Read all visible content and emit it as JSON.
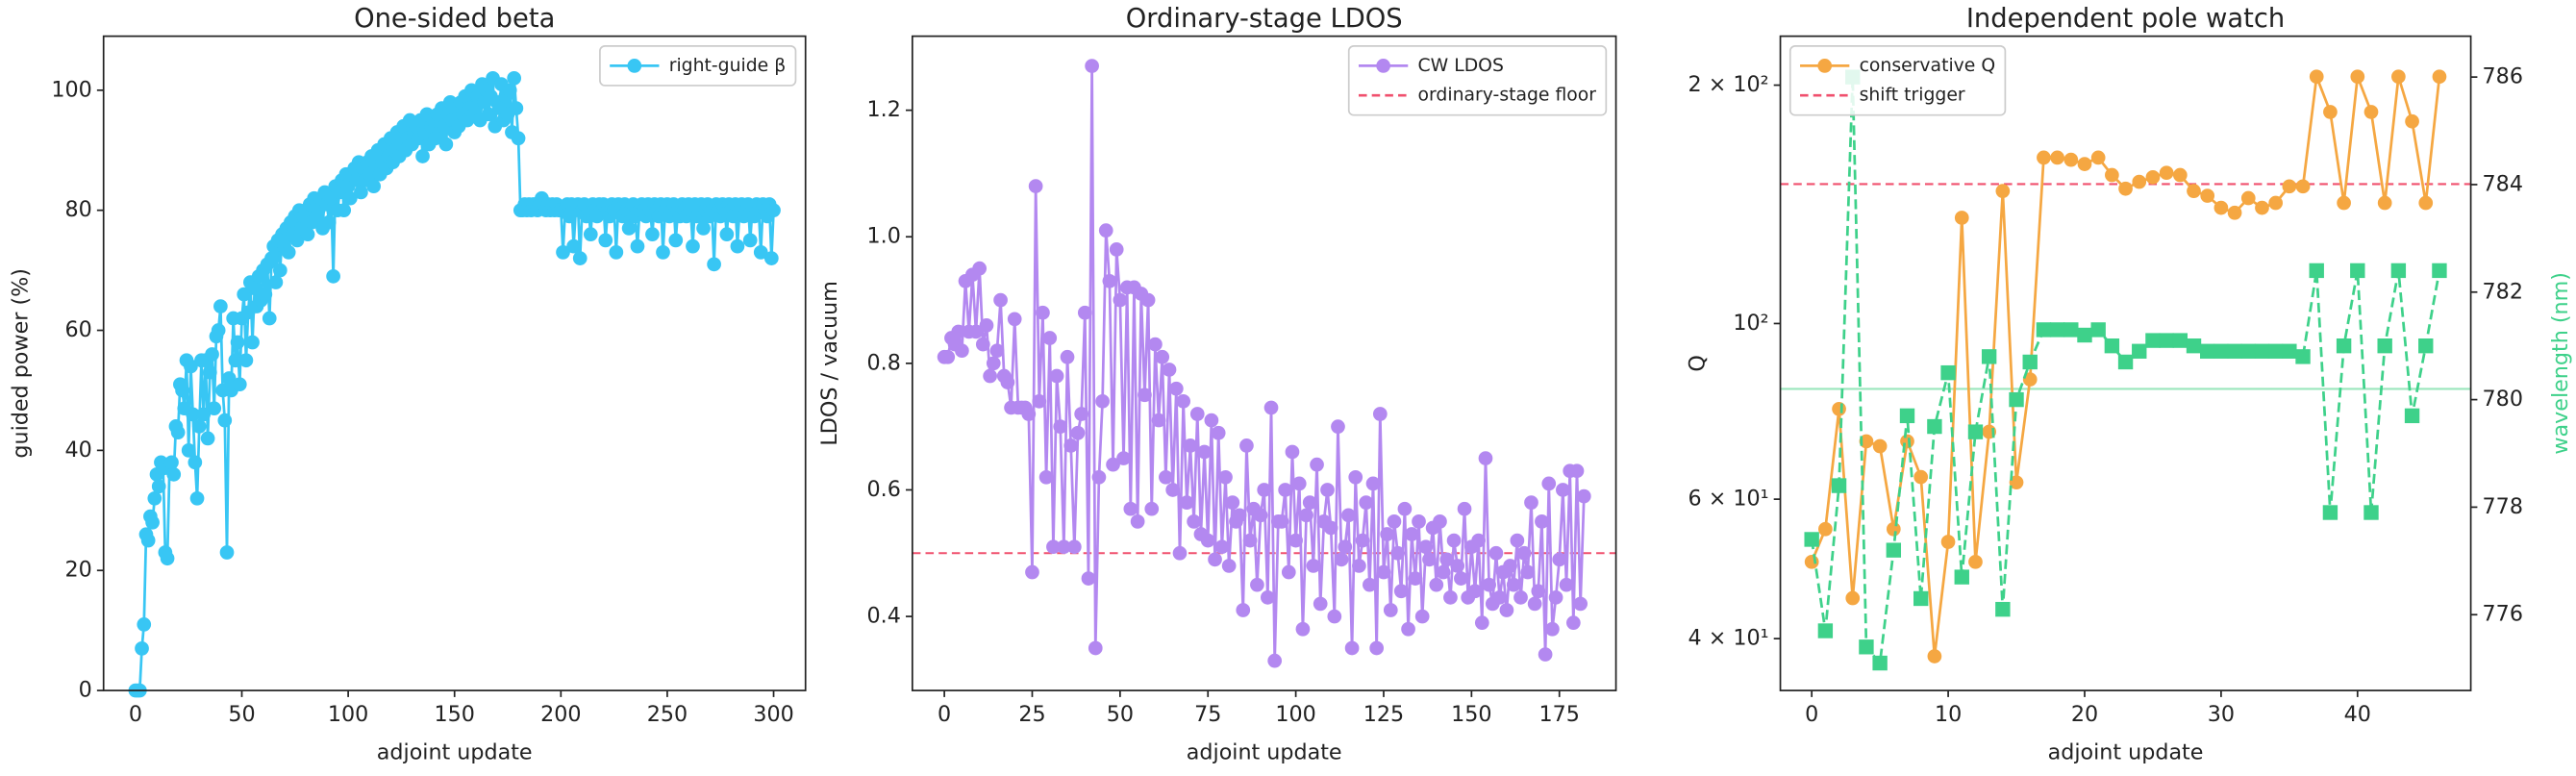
{
  "chart_data": [
    {
      "type": "line",
      "title": "One-sided beta",
      "xlabel": "adjoint update",
      "ylabel": "guided power (%)",
      "xlim": [
        -15,
        315
      ],
      "ylim": [
        0,
        109
      ],
      "xticks": [
        0,
        50,
        100,
        150,
        200,
        250,
        300
      ],
      "yticks": [
        0,
        20,
        40,
        60,
        80,
        100
      ],
      "legend": "upper right",
      "grid": false,
      "series": [
        {
          "name": "right-guide β",
          "color": "#38c6f4",
          "marker": "o",
          "linestyle": "solid",
          "values": [
            0,
            0,
            0,
            7,
            11,
            26,
            25,
            29,
            28,
            32,
            36,
            34,
            38,
            37,
            23,
            22,
            37,
            38,
            36,
            44,
            43,
            51,
            50,
            47,
            55,
            40,
            54,
            46,
            38,
            32,
            44,
            55,
            46,
            55,
            42,
            53,
            56,
            47,
            59,
            60,
            64,
            50,
            45,
            23,
            52,
            50,
            62,
            55,
            58,
            51,
            62,
            66,
            55,
            63,
            68,
            58,
            67,
            64,
            69,
            65,
            70,
            66,
            71,
            62,
            72,
            74,
            68,
            75,
            70,
            76,
            74,
            77,
            73,
            78,
            76,
            79,
            75,
            80,
            77,
            79,
            80,
            76,
            81,
            78,
            82,
            79,
            80,
            82,
            77,
            83,
            81,
            78,
            82,
            69,
            84,
            80,
            83,
            85,
            80,
            86,
            84,
            82,
            86,
            87,
            85,
            88,
            83,
            87,
            85,
            88,
            86,
            89,
            84,
            87,
            90,
            86,
            88,
            91,
            87,
            89,
            92,
            88,
            90,
            93,
            89,
            91,
            94,
            90,
            92,
            95,
            91,
            93,
            94,
            92,
            95,
            89,
            93,
            96,
            91,
            94,
            95,
            92,
            96,
            93,
            97,
            94,
            91,
            96,
            98,
            95,
            93,
            97,
            94,
            98,
            96,
            99,
            95,
            97,
            100,
            96,
            97,
            99,
            95,
            101,
            98,
            100,
            96,
            99,
            102,
            94,
            98,
            97,
            101,
            95,
            99,
            96,
            100,
            93,
            102,
            97,
            92,
            80,
            80,
            81,
            80,
            81,
            80,
            81,
            81,
            80,
            81,
            82,
            81,
            80,
            81,
            80,
            81,
            80,
            81,
            80,
            80,
            73,
            80,
            81,
            79,
            81,
            74,
            80,
            81,
            72,
            80,
            81,
            79,
            80,
            76,
            81,
            80,
            79,
            81,
            80,
            81,
            75,
            80,
            79,
            81,
            80,
            73,
            81,
            80,
            79,
            81,
            80,
            77,
            80,
            81,
            79,
            74,
            80,
            81,
            80,
            79,
            81,
            80,
            76,
            81,
            80,
            79,
            81,
            73,
            80,
            81,
            79,
            80,
            81,
            75,
            80,
            79,
            81,
            80,
            79,
            81,
            80,
            74,
            81,
            79,
            80,
            81,
            77,
            80,
            81,
            79,
            80,
            71,
            81,
            80,
            79,
            81,
            80,
            76,
            81,
            80,
            79,
            81,
            74,
            80,
            81,
            79,
            80,
            81,
            75,
            80,
            79,
            81,
            80,
            73,
            81,
            80,
            79,
            81,
            72,
            80
          ]
        }
      ],
      "reference_lines": []
    },
    {
      "type": "line",
      "title": "Ordinary-stage LDOS",
      "xlabel": "adjoint update",
      "ylabel": "LDOS / vacuum",
      "xlim": [
        -9.1,
        191.1
      ],
      "ylim": [
        0.283,
        1.317
      ],
      "xticks": [
        0,
        25,
        50,
        75,
        100,
        125,
        150,
        175
      ],
      "yticks": [
        0.4,
        0.6,
        0.8,
        {
          "value": 1,
          "label": "1.0"
        },
        1.2
      ],
      "legend": "upper right",
      "grid": false,
      "series": [
        {
          "name": "CW LDOS",
          "color": "#b388f0",
          "marker": "o",
          "linestyle": "solid",
          "values": [
            0.81,
            0.81,
            0.84,
            0.83,
            0.85,
            0.82,
            0.93,
            0.85,
            0.94,
            0.85,
            0.95,
            0.83,
            0.86,
            0.78,
            0.8,
            0.82,
            0.9,
            0.78,
            0.77,
            0.73,
            0.87,
            0.73,
            0.73,
            0.73,
            0.72,
            0.47,
            1.08,
            0.74,
            0.88,
            0.62,
            0.84,
            0.51,
            0.78,
            0.7,
            0.51,
            0.81,
            0.67,
            0.51,
            0.69,
            0.72,
            0.88,
            0.46,
            1.27,
            0.35,
            0.62,
            0.74,
            1.01,
            0.93,
            0.64,
            0.98,
            0.9,
            0.65,
            0.92,
            0.57,
            0.92,
            0.55,
            0.91,
            0.75,
            0.9,
            0.57,
            0.83,
            0.71,
            0.81,
            0.62,
            0.79,
            0.6,
            0.76,
            0.5,
            0.74,
            0.58,
            0.67,
            0.55,
            0.72,
            0.53,
            0.66,
            0.52,
            0.71,
            0.49,
            0.69,
            0.51,
            0.62,
            0.48,
            0.58,
            0.55,
            0.56,
            0.41,
            0.67,
            0.52,
            0.57,
            0.45,
            0.56,
            0.6,
            0.43,
            0.73,
            0.33,
            0.55,
            0.55,
            0.6,
            0.47,
            0.66,
            0.52,
            0.61,
            0.38,
            0.56,
            0.58,
            0.48,
            0.64,
            0.42,
            0.55,
            0.6,
            0.54,
            0.4,
            0.7,
            0.49,
            0.51,
            0.56,
            0.35,
            0.62,
            0.48,
            0.52,
            0.58,
            0.45,
            0.61,
            0.35,
            0.72,
            0.47,
            0.53,
            0.41,
            0.55,
            0.5,
            0.44,
            0.57,
            0.38,
            0.53,
            0.46,
            0.55,
            0.4,
            0.51,
            0.49,
            0.54,
            0.45,
            0.55,
            0.47,
            0.49,
            0.43,
            0.52,
            0.48,
            0.46,
            0.57,
            0.43,
            0.51,
            0.44,
            0.52,
            0.39,
            0.65,
            0.45,
            0.42,
            0.5,
            0.43,
            0.47,
            0.41,
            0.48,
            0.45,
            0.52,
            0.43,
            0.5,
            0.47,
            0.58,
            0.42,
            0.44,
            0.55,
            0.34,
            0.61,
            0.38,
            0.43,
            0.49,
            0.6,
            0.45,
            0.63,
            0.39,
            0.63,
            0.42,
            0.59
          ]
        }
      ],
      "reference_lines": [
        {
          "name": "ordinary-stage floor",
          "value": 0.5,
          "color": "#f0506e",
          "linestyle": "dashed"
        }
      ]
    },
    {
      "type": "line",
      "title": "Independent pole watch",
      "xlabel": "adjoint update",
      "ylabel": "Q",
      "y2label": "wavelength (nm)",
      "xlim": [
        -2.3,
        48.3
      ],
      "ylim": [
        34.4,
        230.6
      ],
      "y2lim": [
        774.59,
        786.76
      ],
      "ylog": true,
      "xticks": [
        0,
        10,
        20,
        30,
        40
      ],
      "yticks": [
        {
          "value": 40,
          "label": "4 × 10¹"
        },
        {
          "value": 60,
          "label": "6 × 10¹"
        },
        {
          "value": 100,
          "label": "10²"
        },
        {
          "value": 200,
          "label": "2 × 10²"
        }
      ],
      "y2ticks": [
        776,
        778,
        780,
        782,
        784,
        786
      ],
      "legend": "upper left",
      "grid": false,
      "series": [
        {
          "name": "conservative Q",
          "color": "#f5a742",
          "marker": "o",
          "linestyle": "solid",
          "values": [
            50,
            55,
            78,
            45,
            71,
            70,
            55,
            71,
            64,
            38,
            53,
            136,
            50,
            73,
            147,
            63,
            85,
            162,
            162,
            161,
            159,
            162,
            154,
            148,
            151,
            153,
            155,
            154,
            147,
            145,
            140,
            138,
            144,
            140,
            142,
            149,
            149,
            205,
            185,
            142,
            205,
            185,
            142,
            205,
            180,
            142,
            205
          ]
        },
        {
          "color": "#3ed18a",
          "marker": "s",
          "linestyle": "dashed",
          "axis": "y2",
          "values": [
            777.4,
            775.7,
            778.4,
            786.0,
            775.4,
            775.1,
            777.2,
            779.7,
            776.3,
            779.5,
            780.5,
            776.7,
            779.4,
            780.8,
            776.1,
            780.0,
            780.7,
            781.3,
            781.3,
            781.3,
            781.2,
            781.3,
            781.0,
            780.7,
            780.9,
            781.1,
            781.1,
            781.1,
            781.0,
            780.9,
            780.9,
            780.9,
            780.9,
            780.9,
            780.9,
            780.9,
            780.8,
            782.4,
            777.9,
            781.0,
            782.4,
            777.9,
            781.0,
            782.4,
            779.7,
            781.0,
            782.4
          ]
        }
      ],
      "reference_lines": [
        {
          "name": "shift trigger",
          "value": 150,
          "color": "#f0506e",
          "linestyle": "dashed"
        },
        {
          "value": 780.2,
          "axis": "y2",
          "color": "#9be6bd",
          "linestyle": "solid"
        }
      ]
    }
  ]
}
